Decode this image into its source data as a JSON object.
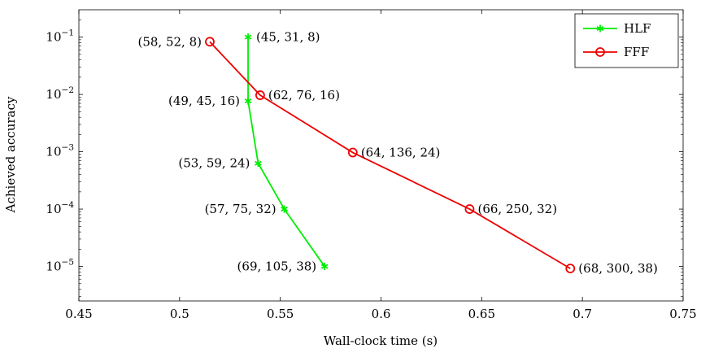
{
  "chart_data": {
    "type": "line",
    "xlabel": "Wall-clock time (s)",
    "ylabel": "Achieved accuracy",
    "xlim": [
      0.45,
      0.75
    ],
    "ylim": [
      2.5e-06,
      0.3
    ],
    "yscale": "log",
    "grid": false,
    "legend_position": "top-right",
    "x_ticks": [
      {
        "value": 0.45,
        "label": "0.45"
      },
      {
        "value": 0.5,
        "label": "0.5"
      },
      {
        "value": 0.55,
        "label": "0.55"
      },
      {
        "value": 0.6,
        "label": "0.6"
      },
      {
        "value": 0.65,
        "label": "0.65"
      },
      {
        "value": 0.7,
        "label": "0.7"
      },
      {
        "value": 0.75,
        "label": "0.75"
      }
    ],
    "y_ticks": [
      {
        "value": 0.1,
        "base": "10",
        "exp": "−1"
      },
      {
        "value": 0.01,
        "base": "10",
        "exp": "−2"
      },
      {
        "value": 0.001,
        "base": "10",
        "exp": "−3"
      },
      {
        "value": 0.0001,
        "base": "10",
        "exp": "−4"
      },
      {
        "value": 1e-05,
        "base": "10",
        "exp": "−5"
      }
    ],
    "series": [
      {
        "name": "HLF",
        "color": "#00ee00",
        "marker": "asterisk",
        "points": [
          {
            "x": 0.534,
            "y": 0.1,
            "label": "(45, 31, 8)",
            "label_side": "right"
          },
          {
            "x": 0.534,
            "y": 0.0077,
            "label": "(49, 45, 16)",
            "label_side": "left"
          },
          {
            "x": 0.539,
            "y": 0.00063,
            "label": "(53, 59, 24)",
            "label_side": "left"
          },
          {
            "x": 0.552,
            "y": 0.0001,
            "label": "(57, 75, 32)",
            "label_side": "left"
          },
          {
            "x": 0.572,
            "y": 1e-05,
            "label": "(69, 105, 38)",
            "label_side": "left"
          }
        ]
      },
      {
        "name": "FFF",
        "color": "#ee0000",
        "marker": "circle",
        "points": [
          {
            "x": 0.515,
            "y": 0.083,
            "label": "(58, 52, 8)",
            "label_side": "left"
          },
          {
            "x": 0.54,
            "y": 0.0097,
            "label": "(62, 76, 16)",
            "label_side": "right"
          },
          {
            "x": 0.586,
            "y": 0.00097,
            "label": "(64, 136, 24)",
            "label_side": "right"
          },
          {
            "x": 0.644,
            "y": 0.0001,
            "label": "(66, 250, 32)",
            "label_side": "right"
          },
          {
            "x": 0.694,
            "y": 9.2e-06,
            "label": "(68, 300, 38)",
            "label_side": "right"
          }
        ]
      }
    ]
  }
}
